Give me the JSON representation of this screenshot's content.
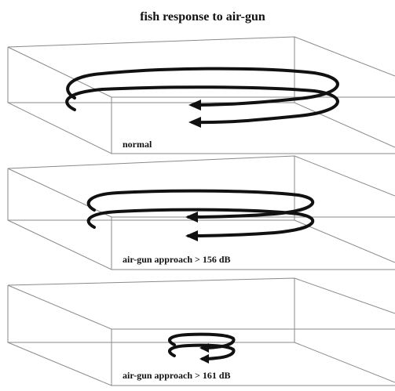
{
  "title": "fish response to air-gun",
  "panels": [
    {
      "label": "normal"
    },
    {
      "label": "air-gun approach > 156 dB"
    },
    {
      "label": "air-gun approach > 161 dB"
    }
  ]
}
